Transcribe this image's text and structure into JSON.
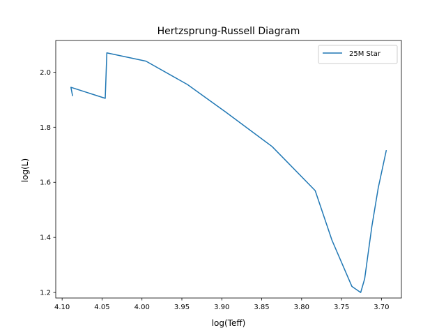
{
  "chart_data": {
    "type": "line",
    "title": "Hertzsprung-Russell Diagram",
    "xlabel": "log(Teff)",
    "ylabel": "log(L)",
    "xlim": [
      4.108,
      3.675
    ],
    "ylim": [
      1.18,
      2.115
    ],
    "x_inverted": true,
    "xticks": [
      4.1,
      4.05,
      4.0,
      3.95,
      3.9,
      3.85,
      3.8,
      3.75,
      3.7
    ],
    "xtick_labels": [
      "4.10",
      "4.05",
      "4.00",
      "3.95",
      "3.90",
      "3.85",
      "3.80",
      "3.75",
      "3.70"
    ],
    "yticks": [
      1.2,
      1.4,
      1.6,
      1.8,
      2.0
    ],
    "ytick_labels": [
      "1.2",
      "1.4",
      "1.6",
      "1.8",
      "2.0"
    ],
    "grid": false,
    "legend_position": "top-right",
    "series": [
      {
        "name": "25M Star",
        "color": "#1f77b4",
        "x": [
          4.087,
          4.089,
          4.046,
          4.044,
          3.995,
          3.943,
          3.895,
          3.837,
          3.783,
          3.762,
          3.737,
          3.726,
          3.721,
          3.717,
          3.712,
          3.704,
          3.694
        ],
        "y": [
          1.915,
          1.945,
          1.905,
          2.07,
          2.04,
          1.955,
          1.855,
          1.73,
          1.57,
          1.39,
          1.222,
          1.2,
          1.25,
          1.335,
          1.44,
          1.58,
          1.715
        ]
      }
    ]
  }
}
